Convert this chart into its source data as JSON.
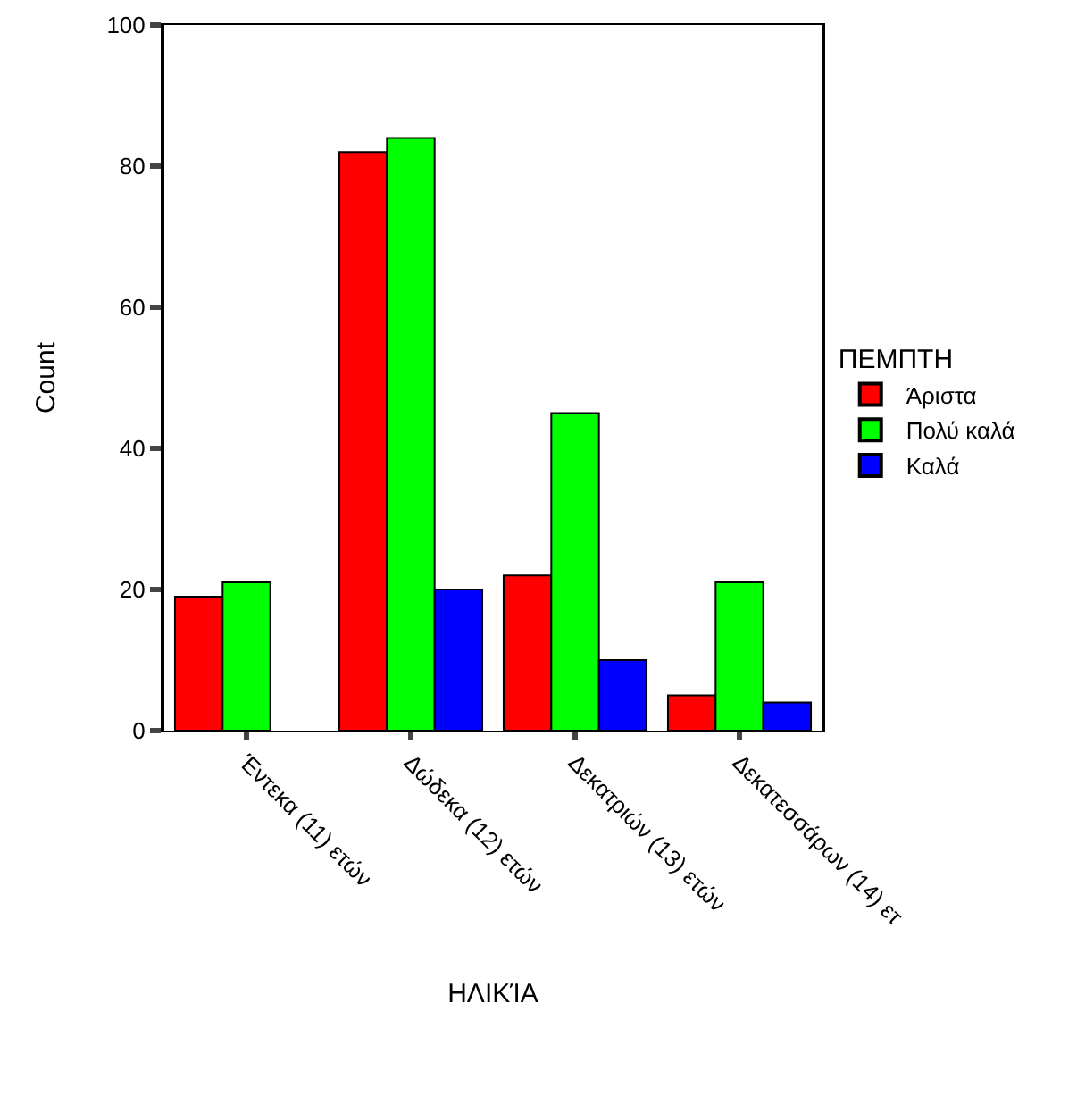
{
  "chart_data": {
    "type": "bar",
    "xlabel": "ΗΛΙΚΊΑ",
    "ylabel": "Count",
    "legend_title": "ΠΕΜΠΤΗ",
    "categories": [
      "Έντεκα (11) ετών",
      "Δώδεκα (12) ετών",
      "Δεκατριών (13) ετών",
      "Δεκατεσσάρων (14) ετ"
    ],
    "series": [
      {
        "name": "Άριστα",
        "color": "#ff0000",
        "values": [
          19,
          82,
          22,
          5
        ]
      },
      {
        "name": "Πολύ καλά",
        "color": "#00ff00",
        "values": [
          21,
          84,
          45,
          21
        ]
      },
      {
        "name": "Καλά",
        "color": "#0000ff",
        "values": [
          null,
          20,
          10,
          4
        ]
      }
    ],
    "ylim": [
      0,
      100
    ],
    "yticks": [
      0,
      20,
      40,
      60,
      80,
      100
    ],
    "grid": false,
    "legend": "right"
  }
}
